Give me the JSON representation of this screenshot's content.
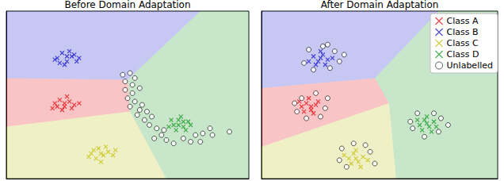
{
  "chart_data": [
    {
      "type": "scatter",
      "title": "Before Domain Adaptation",
      "xlim": [
        0,
        10
      ],
      "ylim": [
        0,
        10
      ],
      "tick_labels": false,
      "regions": [
        {
          "class": "Class B",
          "polygon": [
            [
              0,
              10
            ],
            [
              8.0,
              10
            ],
            [
              5.0,
              5.9
            ],
            [
              0,
              6.0
            ]
          ]
        },
        {
          "class": "Class A",
          "polygon": [
            [
              0,
              6.0
            ],
            [
              5.0,
              5.9
            ],
            [
              5.1,
              4.0
            ],
            [
              0,
              3.1
            ]
          ]
        },
        {
          "class": "Class C",
          "polygon": [
            [
              0,
              3.1
            ],
            [
              5.1,
              4.0
            ],
            [
              6.6,
              0
            ],
            [
              0,
              0
            ]
          ]
        },
        {
          "class": "Class D",
          "polygon": [
            [
              8.0,
              10
            ],
            [
              10,
              10
            ],
            [
              10,
              0
            ],
            [
              6.6,
              0
            ],
            [
              5.1,
              4.0
            ],
            [
              5.0,
              5.9
            ]
          ]
        }
      ],
      "series": [
        {
          "name": "Class A",
          "color": "#e8141c",
          "marker": "x",
          "values": [
            [
              2.0,
              4.5
            ],
            [
              2.2,
              4.7
            ],
            [
              2.4,
              4.3
            ],
            [
              2.6,
              4.6
            ],
            [
              2.3,
              4.1
            ],
            [
              2.8,
              4.4
            ],
            [
              1.9,
              4.2
            ],
            [
              2.5,
              4.9
            ],
            [
              2.1,
              4.3
            ],
            [
              2.7,
              4.2
            ],
            [
              3.0,
              4.5
            ],
            [
              2.4,
              4.5
            ]
          ]
        },
        {
          "name": "Class B",
          "color": "#1f1fd0",
          "marker": "x",
          "values": [
            [
              2.1,
              7.2
            ],
            [
              2.3,
              7.5
            ],
            [
              2.5,
              7.0
            ],
            [
              2.7,
              7.3
            ],
            [
              2.9,
              7.0
            ],
            [
              2.4,
              6.8
            ],
            [
              2.6,
              7.6
            ],
            [
              2.2,
              6.9
            ],
            [
              2.8,
              7.4
            ],
            [
              3.0,
              7.2
            ],
            [
              2.5,
              7.3
            ],
            [
              2.0,
              7.1
            ]
          ]
        },
        {
          "name": "Class C",
          "color": "#c4c41a",
          "marker": "x",
          "values": [
            [
              3.5,
              1.5
            ],
            [
              3.8,
              1.8
            ],
            [
              4.0,
              1.4
            ],
            [
              4.2,
              1.6
            ],
            [
              3.7,
              1.2
            ],
            [
              4.4,
              1.4
            ],
            [
              3.9,
              1.0
            ],
            [
              3.6,
              1.7
            ],
            [
              4.1,
              1.9
            ],
            [
              4.5,
              1.7
            ],
            [
              3.4,
              1.3
            ],
            [
              3.9,
              1.5
            ]
          ]
        },
        {
          "name": "Class D",
          "color": "#1f9c2a",
          "marker": "x",
          "values": [
            [
              6.9,
              3.2
            ],
            [
              7.1,
              3.5
            ],
            [
              7.3,
              3.1
            ],
            [
              7.5,
              3.4
            ],
            [
              7.0,
              2.9
            ],
            [
              7.2,
              3.7
            ],
            [
              6.8,
              3.5
            ],
            [
              7.4,
              2.9
            ],
            [
              7.6,
              3.2
            ],
            [
              7.1,
              3.2
            ],
            [
              7.3,
              3.4
            ],
            [
              6.7,
              3.1
            ]
          ]
        },
        {
          "name": "Unlabelled",
          "color": "#000000",
          "marker": "o",
          "values": [
            [
              4.8,
              6.2
            ],
            [
              5.1,
              6.3
            ],
            [
              5.3,
              6.0
            ],
            [
              4.9,
              5.8
            ],
            [
              5.2,
              5.6
            ],
            [
              4.9,
              5.3
            ],
            [
              5.2,
              5.1
            ],
            [
              5.5,
              5.4
            ],
            [
              5.0,
              4.8
            ],
            [
              5.3,
              4.6
            ],
            [
              5.1,
              4.3
            ],
            [
              5.5,
              4.1
            ],
            [
              5.4,
              3.8
            ],
            [
              5.8,
              4.0
            ],
            [
              5.7,
              3.5
            ],
            [
              6.0,
              3.7
            ],
            [
              5.9,
              3.2
            ],
            [
              6.2,
              3.0
            ],
            [
              6.4,
              2.6
            ],
            [
              6.1,
              2.4
            ],
            [
              6.6,
              2.3
            ],
            [
              6.9,
              2.1
            ],
            [
              7.3,
              2.4
            ],
            [
              7.6,
              2.2
            ],
            [
              7.8,
              2.6
            ],
            [
              8.1,
              2.7
            ],
            [
              8.0,
              2.2
            ],
            [
              8.5,
              2.6
            ],
            [
              9.2,
              2.8
            ],
            [
              6.5,
              2.9
            ],
            [
              5.6,
              4.4
            ],
            [
              8.4,
              3.0
            ]
          ]
        }
      ]
    },
    {
      "type": "scatter",
      "title": "After Domain Adaptation",
      "xlim": [
        0,
        10
      ],
      "ylim": [
        0,
        10
      ],
      "tick_labels": false,
      "legend": "upper right",
      "regions": [
        {
          "class": "Class B",
          "polygon": [
            [
              0,
              10
            ],
            [
              7.5,
              10
            ],
            [
              4.8,
              6.0
            ],
            [
              0,
              5.4
            ]
          ]
        },
        {
          "class": "Class A",
          "polygon": [
            [
              0,
              5.4
            ],
            [
              4.8,
              6.0
            ],
            [
              5.4,
              4.5
            ],
            [
              0,
              1.9
            ]
          ]
        },
        {
          "class": "Class C",
          "polygon": [
            [
              0,
              1.9
            ],
            [
              5.4,
              4.5
            ],
            [
              5.7,
              0
            ],
            [
              0,
              0
            ]
          ]
        },
        {
          "class": "Class D",
          "polygon": [
            [
              7.5,
              10
            ],
            [
              10,
              10
            ],
            [
              10,
              0
            ],
            [
              5.7,
              0
            ],
            [
              5.4,
              4.5
            ],
            [
              4.8,
              6.0
            ]
          ]
        }
      ],
      "series": [
        {
          "name": "Class A",
          "color": "#e8141c",
          "marker": "x",
          "values": [
            [
              1.7,
              4.3
            ],
            [
              1.9,
              4.5
            ],
            [
              2.1,
              4.1
            ],
            [
              2.3,
              4.4
            ],
            [
              1.8,
              4.0
            ],
            [
              2.4,
              4.6
            ],
            [
              2.0,
              4.8
            ],
            [
              2.2,
              3.9
            ],
            [
              1.6,
              4.6
            ],
            [
              2.1,
              4.3
            ]
          ]
        },
        {
          "name": "Class B",
          "color": "#1f1fd0",
          "marker": "x",
          "values": [
            [
              2.2,
              7.3
            ],
            [
              2.4,
              7.0
            ],
            [
              2.6,
              7.4
            ],
            [
              2.8,
              7.1
            ],
            [
              2.3,
              6.8
            ],
            [
              2.7,
              6.8
            ],
            [
              2.5,
              7.6
            ],
            [
              2.0,
              7.0
            ],
            [
              3.0,
              7.2
            ],
            [
              2.5,
              7.2
            ]
          ]
        },
        {
          "name": "Class C",
          "color": "#c4c41a",
          "marker": "x",
          "values": [
            [
              3.7,
              1.2
            ],
            [
              3.9,
              1.5
            ],
            [
              4.1,
              1.0
            ],
            [
              4.3,
              1.3
            ],
            [
              3.8,
              0.9
            ],
            [
              4.5,
              1.1
            ],
            [
              4.0,
              1.7
            ],
            [
              3.5,
              1.4
            ],
            [
              4.2,
              0.7
            ],
            [
              4.0,
              1.2
            ]
          ]
        },
        {
          "name": "Class D",
          "color": "#1f9c2a",
          "marker": "x",
          "values": [
            [
              6.7,
              3.2
            ],
            [
              6.9,
              3.5
            ],
            [
              7.1,
              3.1
            ],
            [
              7.3,
              3.4
            ],
            [
              6.8,
              2.9
            ],
            [
              7.0,
              3.7
            ],
            [
              7.2,
              2.8
            ],
            [
              6.6,
              3.5
            ],
            [
              7.4,
              3.1
            ],
            [
              7.0,
              3.3
            ]
          ]
        },
        {
          "name": "Unlabelled",
          "color": "#000000",
          "marker": "o",
          "values": [
            [
              2.0,
              7.7
            ],
            [
              2.6,
              7.9
            ],
            [
              3.1,
              7.6
            ],
            [
              3.3,
              7.0
            ],
            [
              2.9,
              6.6
            ],
            [
              2.2,
              6.5
            ],
            [
              1.8,
              6.9
            ],
            [
              3.5,
              7.4
            ],
            [
              2.8,
              8.0
            ],
            [
              1.5,
              4.0
            ],
            [
              1.7,
              4.8
            ],
            [
              2.3,
              5.1
            ],
            [
              2.7,
              4.2
            ],
            [
              2.5,
              3.7
            ],
            [
              1.9,
              3.6
            ],
            [
              2.8,
              4.8
            ],
            [
              1.4,
              4.5
            ],
            [
              3.4,
              1.8
            ],
            [
              3.9,
              2.1
            ],
            [
              4.6,
              1.6
            ],
            [
              4.8,
              0.9
            ],
            [
              3.6,
              0.7
            ],
            [
              4.4,
              2.0
            ],
            [
              3.3,
              1.1
            ],
            [
              6.4,
              3.0
            ],
            [
              6.6,
              3.9
            ],
            [
              7.3,
              3.9
            ],
            [
              7.6,
              3.6
            ],
            [
              7.5,
              2.8
            ],
            [
              6.9,
              2.5
            ],
            [
              6.3,
              3.4
            ],
            [
              7.9,
              3.2
            ]
          ]
        }
      ]
    }
  ]
}
